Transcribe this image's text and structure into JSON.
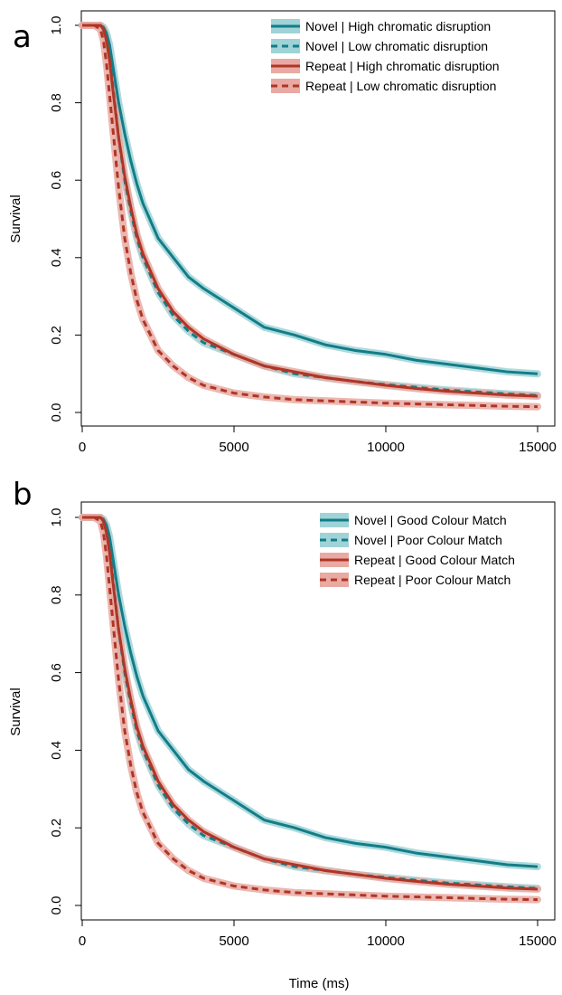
{
  "colors": {
    "novel": "#127d87",
    "novel_band": "#9fd3d7",
    "repeat": "#b03526",
    "repeat_band": "#e8aaa2",
    "axis": "#000000"
  },
  "xlabel": "Time (ms)",
  "chart_data": [
    {
      "type": "line",
      "panel_label": "a",
      "ylabel": "Survival",
      "xlim": [
        0,
        15000
      ],
      "ylim": [
        0,
        1
      ],
      "x_ticks": [
        0,
        5000,
        10000,
        15000
      ],
      "y_ticks": [
        "0.0",
        "0.2",
        "0.4",
        "0.6",
        "0.8",
        "1.0"
      ],
      "grid": false,
      "legend_position": "top-right",
      "x": [
        0,
        400,
        600,
        700,
        800,
        900,
        1000,
        1200,
        1400,
        1600,
        1800,
        2000,
        2500,
        3000,
        3500,
        4000,
        5000,
        6000,
        7000,
        8000,
        9000,
        10000,
        11000,
        12000,
        13000,
        14000,
        15000
      ],
      "series": [
        {
          "name": "Novel | High chromatic disruption",
          "color_key": "novel",
          "style": "solid",
          "values": [
            1.0,
            1.0,
            1.0,
            0.995,
            0.98,
            0.95,
            0.9,
            0.8,
            0.72,
            0.65,
            0.59,
            0.54,
            0.45,
            0.4,
            0.35,
            0.32,
            0.27,
            0.22,
            0.2,
            0.175,
            0.16,
            0.15,
            0.135,
            0.125,
            0.115,
            0.105,
            0.1
          ]
        },
        {
          "name": "Novel | Low chromatic disruption",
          "color_key": "novel",
          "style": "dashed",
          "values": [
            1.0,
            1.0,
            1.0,
            0.99,
            0.96,
            0.92,
            0.85,
            0.71,
            0.6,
            0.52,
            0.45,
            0.4,
            0.31,
            0.25,
            0.21,
            0.18,
            0.15,
            0.12,
            0.1,
            0.09,
            0.08,
            0.072,
            0.065,
            0.058,
            0.053,
            0.048,
            0.044
          ]
        },
        {
          "name": "Repeat | High chromatic disruption",
          "color_key": "repeat",
          "style": "solid",
          "values": [
            1.0,
            1.0,
            1.0,
            0.99,
            0.96,
            0.91,
            0.84,
            0.71,
            0.61,
            0.53,
            0.46,
            0.41,
            0.32,
            0.26,
            0.22,
            0.19,
            0.15,
            0.12,
            0.105,
            0.09,
            0.08,
            0.07,
            0.062,
            0.055,
            0.05,
            0.045,
            0.042
          ]
        },
        {
          "name": "Repeat | Low chromatic disruption",
          "color_key": "repeat",
          "style": "dashed",
          "values": [
            1.0,
            1.0,
            0.99,
            0.96,
            0.9,
            0.82,
            0.74,
            0.58,
            0.45,
            0.36,
            0.29,
            0.24,
            0.16,
            0.12,
            0.09,
            0.07,
            0.05,
            0.04,
            0.033,
            0.03,
            0.027,
            0.024,
            0.022,
            0.02,
            0.018,
            0.016,
            0.015
          ]
        }
      ]
    },
    {
      "type": "line",
      "panel_label": "b",
      "ylabel": "Survival",
      "xlim": [
        0,
        15000
      ],
      "ylim": [
        0,
        1
      ],
      "x_ticks": [
        0,
        5000,
        10000,
        15000
      ],
      "y_ticks": [
        "0.0",
        "0.2",
        "0.4",
        "0.6",
        "0.8",
        "1.0"
      ],
      "grid": false,
      "legend_position": "top-right",
      "x": [
        0,
        400,
        600,
        700,
        800,
        900,
        1000,
        1200,
        1400,
        1600,
        1800,
        2000,
        2500,
        3000,
        3500,
        4000,
        5000,
        6000,
        7000,
        8000,
        9000,
        10000,
        11000,
        12000,
        13000,
        14000,
        15000
      ],
      "series": [
        {
          "name": "Novel | Good Colour Match",
          "color_key": "novel",
          "style": "solid",
          "values": [
            1.0,
            1.0,
            1.0,
            0.995,
            0.98,
            0.95,
            0.9,
            0.8,
            0.72,
            0.65,
            0.59,
            0.54,
            0.45,
            0.4,
            0.35,
            0.32,
            0.27,
            0.22,
            0.2,
            0.175,
            0.16,
            0.15,
            0.135,
            0.125,
            0.115,
            0.105,
            0.1
          ]
        },
        {
          "name": "Novel | Poor Colour Match",
          "color_key": "novel",
          "style": "dashed",
          "values": [
            1.0,
            1.0,
            1.0,
            0.99,
            0.96,
            0.92,
            0.85,
            0.71,
            0.6,
            0.52,
            0.45,
            0.4,
            0.31,
            0.25,
            0.21,
            0.18,
            0.15,
            0.12,
            0.1,
            0.09,
            0.08,
            0.072,
            0.065,
            0.058,
            0.053,
            0.048,
            0.044
          ]
        },
        {
          "name": "Repeat | Good Colour Match",
          "color_key": "repeat",
          "style": "solid",
          "values": [
            1.0,
            1.0,
            1.0,
            0.99,
            0.96,
            0.91,
            0.84,
            0.71,
            0.61,
            0.53,
            0.46,
            0.41,
            0.32,
            0.26,
            0.22,
            0.19,
            0.15,
            0.12,
            0.105,
            0.09,
            0.08,
            0.07,
            0.062,
            0.055,
            0.05,
            0.045,
            0.042
          ]
        },
        {
          "name": "Repeat | Poor Colour Match",
          "color_key": "repeat",
          "style": "dashed",
          "values": [
            1.0,
            1.0,
            0.99,
            0.96,
            0.9,
            0.82,
            0.74,
            0.58,
            0.45,
            0.36,
            0.29,
            0.24,
            0.16,
            0.12,
            0.09,
            0.07,
            0.05,
            0.04,
            0.033,
            0.03,
            0.027,
            0.024,
            0.022,
            0.02,
            0.018,
            0.016,
            0.015
          ]
        }
      ]
    }
  ]
}
